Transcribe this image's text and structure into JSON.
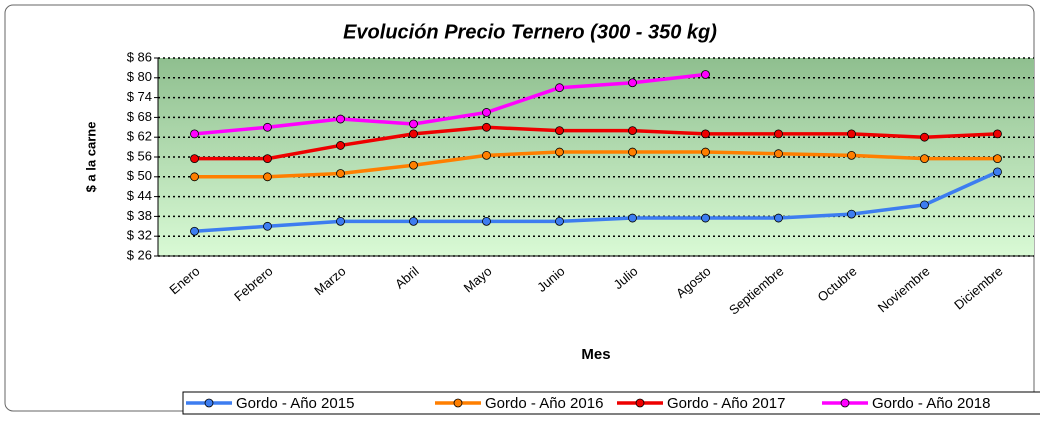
{
  "chart_data": {
    "type": "line",
    "title": "Evolución Precio Ternero (300 - 350 kg)",
    "x_label": "Mes",
    "y_label": "$ a la carne",
    "categories": [
      "Enero",
      "Febrero",
      "Marzo",
      "Abril",
      "Mayo",
      "Junio",
      "Julio",
      "Agosto",
      "Septiembre",
      "Octubre",
      "Noviembre",
      "Diciembre"
    ],
    "series": [
      {
        "name": "Gordo - Año 2015",
        "color": "#3d7df0",
        "values": [
          33.5,
          35,
          36.5,
          36.5,
          36.5,
          36.5,
          37.5,
          37.5,
          37.5,
          38.7,
          41.5,
          51.5
        ]
      },
      {
        "name": "Gordo - Año 2016",
        "color": "#ff7f00",
        "values": [
          50,
          50,
          51,
          53.5,
          56.5,
          57.5,
          57.5,
          57.5,
          57,
          56.5,
          55.5,
          55.5
        ]
      },
      {
        "name": "Gordo - Año 2017",
        "color": "#ee0000",
        "values": [
          55.5,
          55.5,
          59.5,
          63,
          65,
          64,
          64,
          63,
          63,
          63,
          62,
          63
        ]
      },
      {
        "name": "Gordo - Año 2018",
        "color": "#ff00ff",
        "values": [
          63,
          65,
          67.5,
          66,
          69.5,
          77,
          78.5,
          81,
          null,
          null,
          null,
          null
        ]
      }
    ],
    "ylim": [
      26,
      86
    ],
    "yticks": [
      {
        "value": 26,
        "label": "$ 26"
      },
      {
        "value": 32,
        "label": "$ 32"
      },
      {
        "value": 38,
        "label": "$ 38"
      },
      {
        "value": 44,
        "label": "$ 44"
      },
      {
        "value": 50,
        "label": "$ 50"
      },
      {
        "value": 56,
        "label": "$ 56"
      },
      {
        "value": 62,
        "label": "$ 62"
      },
      {
        "value": 68,
        "label": "$ 68"
      },
      {
        "value": 74,
        "label": "$ 74"
      },
      {
        "value": 80,
        "label": "$ 80"
      },
      {
        "value": 86,
        "label": "$ 86"
      }
    ],
    "grid": true,
    "legend_position": "bottom"
  }
}
